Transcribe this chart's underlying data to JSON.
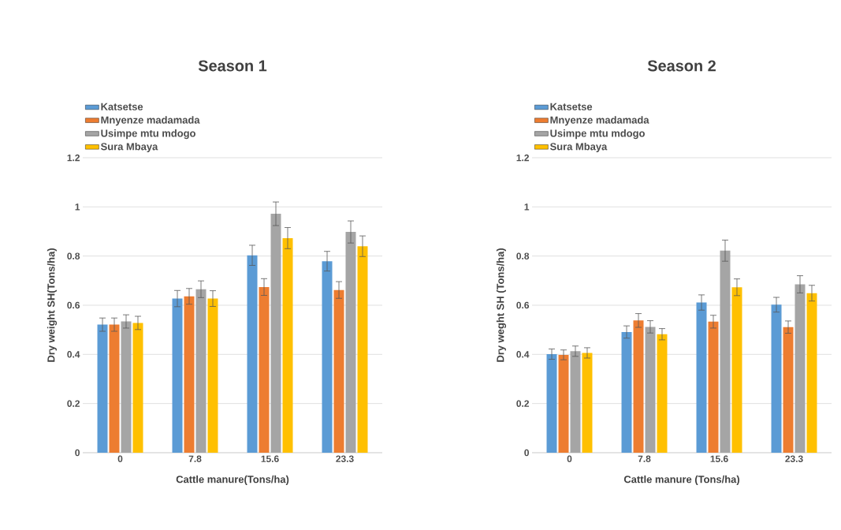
{
  "chart_data": [
    {
      "type": "bar",
      "title": "Season 1",
      "xlabel": "Cattle manure(Tons/ha)",
      "ylabel": "Dry weight SH(Tons/ha)",
      "categories": [
        "0",
        "7.8",
        "15.6",
        "23.3"
      ],
      "ylim": [
        0,
        1.2
      ],
      "yticks": [
        0,
        0.2,
        0.4,
        0.6,
        0.8,
        1,
        1.2
      ],
      "grid": "y",
      "legend": "top left",
      "series": [
        {
          "name": "Katsetse",
          "color": "#5b9bd5",
          "values": [
            0.521,
            0.627,
            0.803,
            0.779
          ],
          "errors": [
            0.027,
            0.033,
            0.041,
            0.04
          ]
        },
        {
          "name": "Mnyenze madamada",
          "color": "#ed7d31",
          "values": [
            0.521,
            0.636,
            0.674,
            0.662
          ],
          "errors": [
            0.027,
            0.032,
            0.034,
            0.034
          ]
        },
        {
          "name": "Usimpe mtu mdogo",
          "color": "#a5a5a5",
          "values": [
            0.534,
            0.665,
            0.972,
            0.898
          ],
          "errors": [
            0.027,
            0.034,
            0.048,
            0.045
          ]
        },
        {
          "name": "Sura Mbaya",
          "color": "#ffc000",
          "values": [
            0.528,
            0.627,
            0.873,
            0.84
          ],
          "errors": [
            0.027,
            0.032,
            0.043,
            0.042
          ]
        }
      ]
    },
    {
      "type": "bar",
      "title": "Season 2",
      "xlabel": "Cattle manure (Tons/ha)",
      "ylabel": "Dry weght SH (Tons/ha)",
      "categories": [
        "0",
        "7.8",
        "15.6",
        "23.3"
      ],
      "ylim": [
        0,
        1.2
      ],
      "yticks": [
        0,
        0.2,
        0.4,
        0.6,
        0.8,
        1,
        1.2
      ],
      "grid": "y",
      "legend": "top left",
      "series": [
        {
          "name": "Katsetse",
          "color": "#5b9bd5",
          "values": [
            0.401,
            0.491,
            0.611,
            0.602
          ],
          "errors": [
            0.021,
            0.025,
            0.031,
            0.03
          ]
        },
        {
          "name": "Mnyenze madamada",
          "color": "#ed7d31",
          "values": [
            0.398,
            0.538,
            0.533,
            0.511
          ],
          "errors": [
            0.02,
            0.028,
            0.026,
            0.025
          ]
        },
        {
          "name": "Usimpe mtu mdogo",
          "color": "#a5a5a5",
          "values": [
            0.413,
            0.512,
            0.822,
            0.685
          ],
          "errors": [
            0.021,
            0.025,
            0.043,
            0.035
          ]
        },
        {
          "name": "Sura Mbaya",
          "color": "#ffc000",
          "values": [
            0.406,
            0.482,
            0.673,
            0.649
          ],
          "errors": [
            0.021,
            0.023,
            0.034,
            0.032
          ]
        }
      ]
    }
  ]
}
